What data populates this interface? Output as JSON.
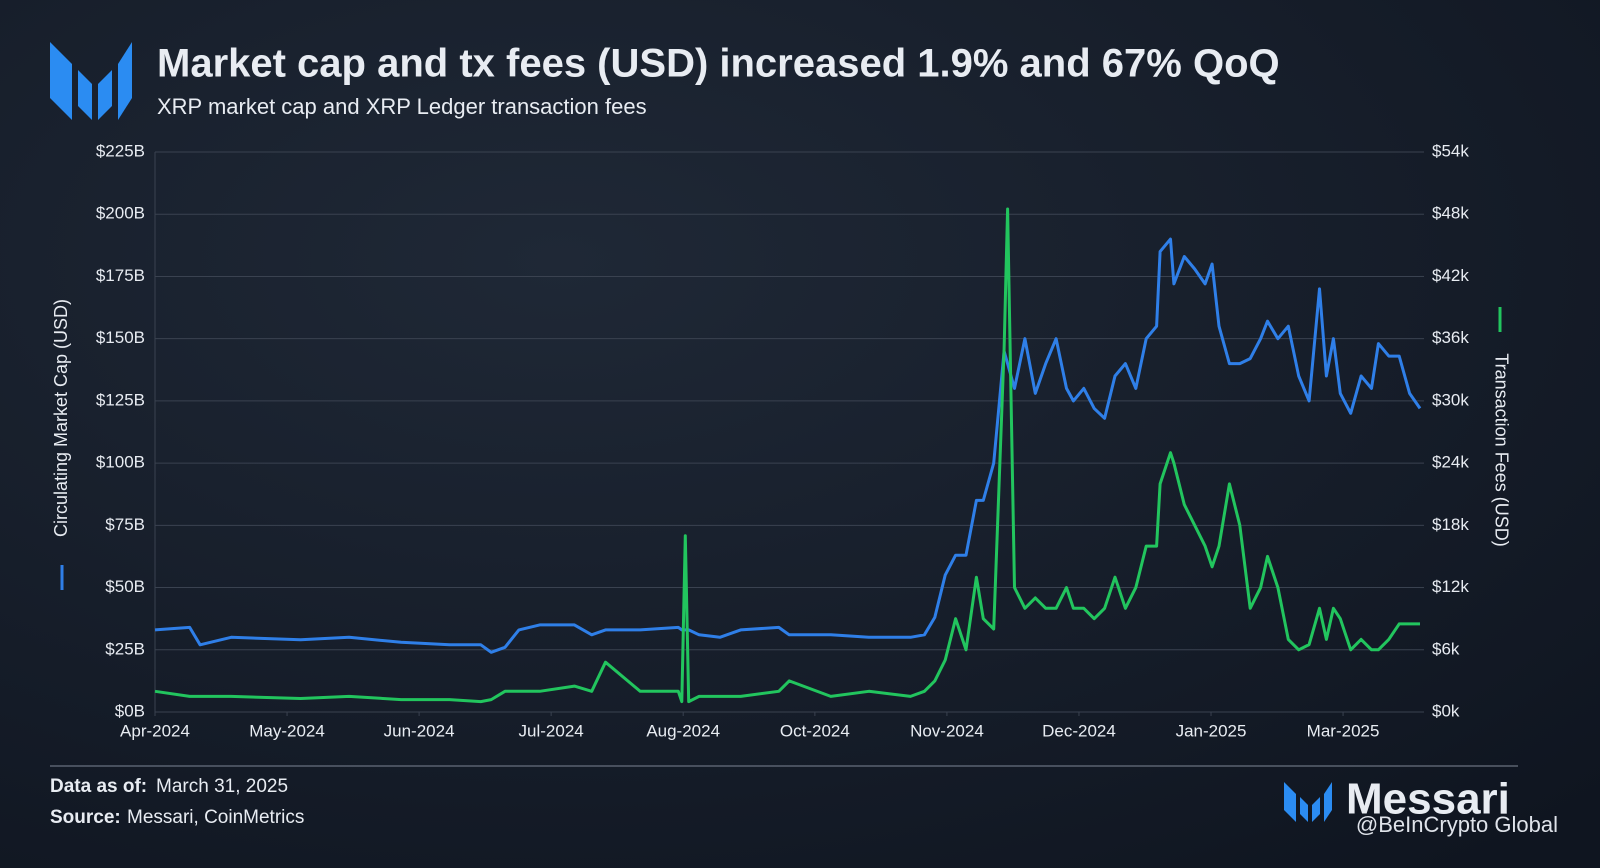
{
  "chart_data": {
    "type": "line",
    "title": "Market cap and tx fees (USD) increased 1.9% and 67% QoQ",
    "subtitle": "XRP market cap and XRP Ledger transaction fees",
    "y_label": "Circulating Market Cap (USD)",
    "y2_label": "Transaction Fees (USD)",
    "x": [
      0,
      10,
      13,
      22,
      42,
      56,
      71,
      85,
      94,
      97,
      101,
      105,
      111,
      121,
      126,
      130,
      140,
      151,
      152,
      153,
      154,
      157,
      163,
      169,
      180,
      183,
      195,
      206,
      218,
      222,
      225,
      228,
      231,
      234,
      237,
      239,
      242,
      245,
      246,
      248,
      251,
      254,
      257,
      260,
      263,
      265,
      268,
      271,
      274,
      277,
      280,
      283,
      286,
      289,
      290,
      293,
      294,
      297,
      300,
      303,
      305,
      307,
      310,
      313,
      316,
      319,
      321,
      324,
      327,
      330,
      333,
      336,
      338,
      340,
      342,
      345,
      348,
      351,
      353,
      356,
      359,
      362,
      365
    ],
    "series": [
      {
        "name": "Circulating Market Cap (USD)",
        "color": "#2f7fe8",
        "axis": "y",
        "values": [
          33,
          34,
          27,
          30,
          29,
          30,
          28,
          27,
          27,
          24,
          26,
          33,
          35,
          35,
          31,
          33,
          33,
          34,
          33,
          33,
          33,
          31,
          30,
          33,
          34,
          31,
          31,
          30,
          30,
          31,
          38,
          55,
          63,
          63,
          85,
          85,
          100,
          145,
          140,
          130,
          150,
          128,
          140,
          150,
          130,
          125,
          130,
          122,
          118,
          135,
          140,
          130,
          150,
          155,
          185,
          190,
          172,
          183,
          178,
          172,
          180,
          155,
          140,
          140,
          142,
          150,
          157,
          150,
          155,
          135,
          125,
          170,
          135,
          150,
          128,
          120,
          135,
          130,
          148,
          143,
          143,
          128,
          122
        ]
      },
      {
        "name": "Transaction Fees (USD)",
        "color": "#22c55e",
        "axis": "y2",
        "values": [
          2,
          1.5,
          1.5,
          1.5,
          1.3,
          1.5,
          1.2,
          1.2,
          1,
          1.2,
          2,
          2,
          2,
          2.5,
          2,
          4.8,
          2,
          2,
          1,
          17,
          1,
          1.5,
          1.5,
          1.5,
          2,
          3,
          1.5,
          2,
          1.5,
          2,
          3,
          5,
          9,
          6,
          13,
          9,
          8,
          35,
          48.5,
          12,
          10,
          11,
          10,
          10,
          12,
          10,
          10,
          9,
          10,
          13,
          10,
          12,
          16,
          16,
          22,
          25,
          24,
          20,
          18,
          16,
          14,
          16,
          22,
          18,
          10,
          12,
          15,
          12,
          7,
          6,
          6.5,
          10,
          7,
          10,
          9,
          6,
          7,
          6,
          6,
          7,
          8.5,
          8.5,
          8.5
        ]
      }
    ],
    "xlim": [
      0,
      365
    ],
    "xticks": [
      {
        "value": 0,
        "label": "Apr-2024"
      },
      {
        "value": 38.1,
        "label": "May-2024"
      },
      {
        "value": 76.2,
        "label": "Jun-2024"
      },
      {
        "value": 114.3,
        "label": "Jul-2024"
      },
      {
        "value": 152.4,
        "label": "Aug-2024"
      },
      {
        "value": 190.4,
        "label": "Oct-2024"
      },
      {
        "value": 228.5,
        "label": "Nov-2024"
      },
      {
        "value": 266.6,
        "label": "Dec-2024"
      },
      {
        "value": 304.7,
        "label": "Jan-2025"
      },
      {
        "value": 342.8,
        "label": "Mar-2025"
      }
    ],
    "ylim": [
      0,
      225
    ],
    "yticks": [
      {
        "value": 0,
        "label": "$0B"
      },
      {
        "value": 25,
        "label": "$25B"
      },
      {
        "value": 50,
        "label": "$50B"
      },
      {
        "value": 75,
        "label": "$75B"
      },
      {
        "value": 100,
        "label": "$100B"
      },
      {
        "value": 125,
        "label": "$125B"
      },
      {
        "value": 150,
        "label": "$150B"
      },
      {
        "value": 175,
        "label": "$175B"
      },
      {
        "value": 200,
        "label": "$200B"
      },
      {
        "value": 225,
        "label": "$225B"
      }
    ],
    "y2lim": [
      0,
      54
    ],
    "y2ticks": [
      {
        "value": 0,
        "label": "$0k"
      },
      {
        "value": 6,
        "label": "$6k"
      },
      {
        "value": 12,
        "label": "$12k"
      },
      {
        "value": 18,
        "label": "$18k"
      },
      {
        "value": 24,
        "label": "$24k"
      },
      {
        "value": 30,
        "label": "$30k"
      },
      {
        "value": 36,
        "label": "$36k"
      },
      {
        "value": 42,
        "label": "$42k"
      },
      {
        "value": 48,
        "label": "$48k"
      },
      {
        "value": 54,
        "label": "$54k"
      }
    ],
    "grid": true
  },
  "footer": {
    "date_label": "Data as of:",
    "date": "March 31, 2025",
    "source_label": "Source:",
    "source": "Messari, CoinMetrics",
    "brand": "Messari",
    "watermark": "@BeInCrypto Global"
  }
}
